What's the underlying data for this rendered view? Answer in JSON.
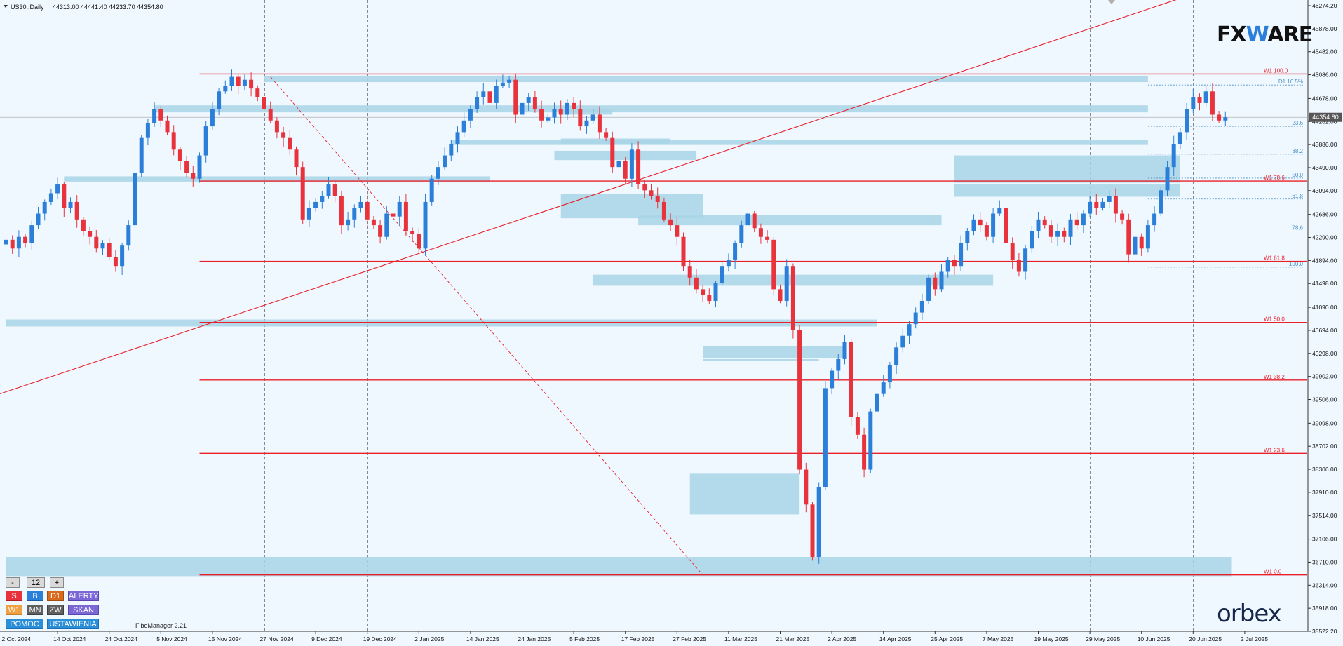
{
  "header": {
    "symbol": "US30.,Daily",
    "ohlc": "44313.00 44441.40 44233.70 44354.80"
  },
  "price_tag": {
    "value": "44354.80",
    "price": 44354.8,
    "color": "#555555"
  },
  "logos": {
    "top_a": "FX",
    "top_w": "W",
    "top_b": "ARE",
    "bottom": "orbex"
  },
  "indicator_label": "FiboManager 2.21",
  "controls": {
    "minus": "-",
    "value": "12",
    "plus": "+",
    "row1": [
      "S",
      "B",
      "D1",
      "ALERTY"
    ],
    "row2": [
      "W1",
      "MN",
      "ZW",
      "SKAN"
    ],
    "row3": [
      "POMOC",
      "USTAWIENIA"
    ]
  },
  "colors": {
    "bull": "#2b7fd8",
    "bear": "#e8323c",
    "zone": "#a8d5e6",
    "level": "#e8202a",
    "fib": "#4a90c8"
  },
  "chart_data": {
    "type": "candlestick",
    "title": "",
    "ylim": [
      35522.2,
      46274.2
    ],
    "y_ticks": [
      "46274.20",
      "45878.00",
      "45482.00",
      "45086.00",
      "44678.00",
      "44282.00",
      "43886.00",
      "43490.00",
      "43094.00",
      "42686.00",
      "42290.00",
      "41894.00",
      "41498.00",
      "41090.00",
      "40694.00",
      "40298.00",
      "39902.00",
      "39506.00",
      "39098.00",
      "38702.00",
      "38306.00",
      "37910.00",
      "37514.00",
      "37106.00",
      "36710.00",
      "36314.00",
      "35918.00",
      "35522.20"
    ],
    "x_ticks": [
      {
        "label": "2 Oct 2024",
        "i": 0
      },
      {
        "label": "14 Oct 2024",
        "i": 8
      },
      {
        "label": "24 Oct 2024",
        "i": 16
      },
      {
        "label": "5 Nov 2024",
        "i": 24
      },
      {
        "label": "15 Nov 2024",
        "i": 32
      },
      {
        "label": "27 Nov 2024",
        "i": 40
      },
      {
        "label": "9 Dec 2024",
        "i": 48
      },
      {
        "label": "19 Dec 2024",
        "i": 56
      },
      {
        "label": "2 Jan 2025",
        "i": 64
      },
      {
        "label": "14 Jan 2025",
        "i": 72
      },
      {
        "label": "24 Jan 2025",
        "i": 80
      },
      {
        "label": "5 Feb 2025",
        "i": 88
      },
      {
        "label": "17 Feb 2025",
        "i": 96
      },
      {
        "label": "27 Feb 2025",
        "i": 104
      },
      {
        "label": "11 Mar 2025",
        "i": 112
      },
      {
        "label": "21 Mar 2025",
        "i": 120
      },
      {
        "label": "2 Apr 2025",
        "i": 128
      },
      {
        "label": "14 Apr 2025",
        "i": 136
      },
      {
        "label": "25 Apr 2025",
        "i": 144
      },
      {
        "label": "7 May 2025",
        "i": 152
      },
      {
        "label": "19 May 2025",
        "i": 160
      },
      {
        "label": "29 May 2025",
        "i": 168
      },
      {
        "label": "10 Jun 2025",
        "i": 176
      },
      {
        "label": "20 Jun 2025",
        "i": 184
      },
      {
        "label": "2 Jul 2025",
        "i": 192
      }
    ],
    "closes": [
      42250,
      42100,
      42300,
      42200,
      42500,
      42700,
      42900,
      43050,
      43200,
      42800,
      42900,
      42600,
      42400,
      42300,
      42100,
      42200,
      41950,
      41800,
      42150,
      42500,
      43400,
      44000,
      44250,
      44500,
      44300,
      44100,
      43800,
      43600,
      43400,
      43300,
      43700,
      44200,
      44500,
      44800,
      44900,
      45050,
      44900,
      45000,
      44850,
      44700,
      44500,
      44300,
      44100,
      44000,
      43800,
      43500,
      42600,
      42800,
      42900,
      43000,
      43200,
      43000,
      42500,
      42600,
      42800,
      42900,
      42600,
      42500,
      42300,
      42700,
      42650,
      42900,
      42400,
      42350,
      42100,
      42900,
      43300,
      43500,
      43700,
      43900,
      44100,
      44300,
      44500,
      44700,
      44800,
      44600,
      44900,
      44950,
      45000,
      44400,
      44600,
      44700,
      44500,
      44300,
      44350,
      44500,
      44400,
      44600,
      44500,
      44200,
      44300,
      44400,
      44100,
      44000,
      43500,
      43600,
      43300,
      43800,
      43200,
      43100,
      43000,
      42900,
      42600,
      42500,
      42300,
      41800,
      41600,
      41400,
      41300,
      41200,
      41500,
      41800,
      41900,
      42200,
      42500,
      42700,
      42450,
      42300,
      42250,
      41400,
      41200,
      41800,
      40700,
      38300,
      37700,
      36800,
      38000,
      39700,
      40000,
      40200,
      40500,
      39200,
      38900,
      38300,
      39300,
      39600,
      39800,
      40100,
      40400,
      40600,
      40800,
      41000,
      41200,
      41600,
      41400,
      41700,
      41900,
      41800,
      42200,
      42400,
      42600,
      42500,
      42300,
      42700,
      42800,
      42200,
      41900,
      41700,
      42100,
      42400,
      42600,
      42500,
      42300,
      42400,
      42300,
      42600,
      42500,
      42700,
      42900,
      42800,
      42900,
      43000,
      42700,
      42600,
      42000,
      42300,
      42100,
      42500,
      42700,
      43100,
      43500,
      43900,
      44100,
      44500,
      44700,
      44600,
      44800,
      44400,
      44300,
      44354.8
    ],
    "zones": [
      {
        "i0": 40,
        "i1": 177,
        "p0": 44960,
        "p1": 45070
      },
      {
        "i0": 23,
        "i1": 177,
        "p0": 44440,
        "p1": 44560
      },
      {
        "i0": 69,
        "i1": 177,
        "p0": 43880,
        "p1": 43970
      },
      {
        "i0": 9,
        "i1": 75,
        "p0": 43250,
        "p1": 43340
      },
      {
        "i0": 147,
        "i1": 182,
        "p0": 43230,
        "p1": 43700
      },
      {
        "i0": 147,
        "i1": 182,
        "p0": 42990,
        "p1": 43200
      },
      {
        "i0": 86,
        "i1": 94,
        "p0": 44400,
        "p1": 44500
      },
      {
        "i0": 86,
        "i1": 103,
        "p0": 43900,
        "p1": 43990
      },
      {
        "i0": 85,
        "i1": 107,
        "p0": 43620,
        "p1": 43780
      },
      {
        "i0": 86,
        "i1": 108,
        "p0": 42620,
        "p1": 43040
      },
      {
        "i0": 98,
        "i1": 145,
        "p0": 42500,
        "p1": 42680
      },
      {
        "i0": 91,
        "i1": 153,
        "p0": 41460,
        "p1": 41650
      },
      {
        "i0": 0,
        "i1": 135,
        "p0": 40760,
        "p1": 40880
      },
      {
        "i0": 108,
        "i1": 130,
        "p0": 40220,
        "p1": 40420
      },
      {
        "i0": 108,
        "i1": 126,
        "p0": 40170,
        "p1": 40200
      },
      {
        "i0": 106,
        "i1": 123,
        "p0": 37530,
        "p1": 38230
      },
      {
        "i0": 0,
        "i1": 190,
        "p0": 36470,
        "p1": 36800
      }
    ],
    "levels": [
      {
        "label": "W1 100.0",
        "price": 45100
      },
      {
        "label": "W1 78.6",
        "price": 43260
      },
      {
        "label": "W1 61.8",
        "price": 41880
      },
      {
        "label": "W1 50.0",
        "price": 40830
      },
      {
        "label": "W1 38.2",
        "price": 39840
      },
      {
        "label": "W1 23.6",
        "price": 38580
      },
      {
        "label": "W1 0.0",
        "price": 36490
      }
    ],
    "fib_d1": [
      {
        "label": "D1 16.5%",
        "price": 44910
      },
      {
        "label": "23.6",
        "price": 44200
      },
      {
        "label": "38.2",
        "price": 43720
      },
      {
        "label": "50.0",
        "price": 43310
      },
      {
        "label": "61.8",
        "price": 42950
      },
      {
        "label": "78.6",
        "price": 42400
      },
      {
        "label": "100.0",
        "price": 41780
      }
    ],
    "trend_line": {
      "i0": -1,
      "p0": 39600,
      "i1": 182,
      "p1": 46400
    },
    "diag_line": {
      "i0": 41,
      "p0": 45050,
      "i1": 108,
      "p1": 36490
    }
  }
}
